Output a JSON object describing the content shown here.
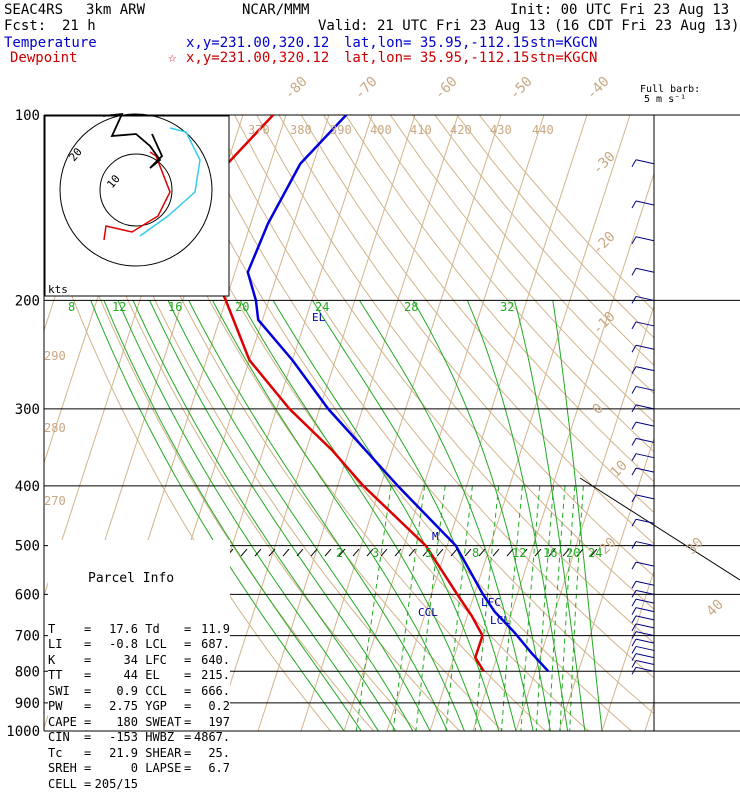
{
  "header": {
    "experiment": "SEAC4RS",
    "model": "3km ARW",
    "center": "NCAR/MMM",
    "init": "Init: 00 UTC Fri 23 Aug 13",
    "fcst_label": "Fcst:",
    "fcst_value": "21 h",
    "valid": "Valid: 21 UTC Fri 23 Aug 13 (16 CDT Fri 23 Aug 13)",
    "temp_label": "Temperature",
    "temp_xy": "x,y=231.00,320.12",
    "temp_latlon": "lat,lon= 35.95,-112.15",
    "temp_stn": "stn=KGCN",
    "dew_label": "Dewpoint",
    "dew_marker": "☆",
    "dew_xy": "x,y=231.00,320.12",
    "dew_latlon": "lat,lon= 35.95,-112.15",
    "dew_stn": "stn=KGCN"
  },
  "barb_key": {
    "title": "Full barb:",
    "value": "5 m s⁻¹"
  },
  "parcel_info": {
    "title": "Parcel Info",
    "rows": [
      {
        "l1": "T",
        "v1": "17.6",
        "l2": "Td",
        "v2": "11.9"
      },
      {
        "l1": "LI",
        "v1": "-0.8",
        "l2": "LCL",
        "v2": "687."
      },
      {
        "l1": "K",
        "v1": "34",
        "l2": "LFC",
        "v2": "640."
      },
      {
        "l1": "TT",
        "v1": "44",
        "l2": "EL",
        "v2": "215."
      },
      {
        "l1": "SWI",
        "v1": "0.9",
        "l2": "CCL",
        "v2": "666."
      },
      {
        "l1": "PW",
        "v1": "2.75",
        "l2": "YGP",
        "v2": "0.2"
      },
      {
        "l1": "CAPE",
        "v1": "180",
        "l2": "SWEAT",
        "v2": "197"
      },
      {
        "l1": "CIN",
        "v1": "-153",
        "l2": "HWBZ",
        "v2": "4867."
      },
      {
        "l1": "Tc",
        "v1": "21.9",
        "l2": "SHEAR",
        "v2": "25."
      },
      {
        "l1": "SREH",
        "v1": "0",
        "l2": "LAPSE",
        "v2": "6.7"
      },
      {
        "l1": "CELL",
        "v1": "205/15",
        "l2": "",
        "v2": ""
      }
    ]
  },
  "hodograph": {
    "units": "kts",
    "ring_labels": [
      "20",
      "10"
    ]
  },
  "chart_data": {
    "type": "line",
    "title": "",
    "xlabel": "",
    "ylabel": "",
    "pressure_ticks": [
      100,
      200,
      300,
      400,
      500,
      600,
      700,
      800,
      900,
      1000
    ],
    "skewt_isotherm_labels": [
      "-80",
      "-70",
      "-60",
      "-50",
      "-40",
      "-30",
      "-20",
      "-10",
      "0",
      "10",
      "20",
      "30",
      "40"
    ],
    "dry_adiabat_labels": [
      "370",
      "380",
      "390",
      "400",
      "410",
      "420",
      "430",
      "440",
      "290",
      "280",
      "270"
    ],
    "mixing_ratio_labels_upper": [
      "8",
      "12",
      "16",
      "20",
      "24",
      "28",
      "32"
    ],
    "mixing_ratio_labels_lower": [
      "2",
      "3",
      "5",
      "8",
      "12",
      "16",
      "20",
      "24"
    ],
    "level_labels": [
      "EL",
      "LFC",
      "CCL",
      "LCL",
      "M"
    ],
    "series": [
      {
        "name": "Temperature",
        "color": "#0000dd",
        "points": [
          {
            "p": 100,
            "t": -66
          },
          {
            "p": 120,
            "t": -73
          },
          {
            "p": 150,
            "t": -76
          },
          {
            "p": 180,
            "t": -77
          },
          {
            "p": 200,
            "t": -73
          },
          {
            "p": 215,
            "t": -71
          },
          {
            "p": 250,
            "t": -60
          },
          {
            "p": 300,
            "t": -48
          },
          {
            "p": 400,
            "t": -26
          },
          {
            "p": 500,
            "t": -8
          },
          {
            "p": 600,
            "t": 2
          },
          {
            "p": 640,
            "t": 6
          },
          {
            "p": 690,
            "t": 12
          },
          {
            "p": 750,
            "t": 18
          },
          {
            "p": 800,
            "t": 23
          }
        ]
      },
      {
        "name": "Dewpoint",
        "color": "#dd0000",
        "points": [
          {
            "p": 100,
            "t": -83
          },
          {
            "p": 130,
            "t": -93
          },
          {
            "p": 150,
            "t": -91
          },
          {
            "p": 165,
            "t": -87
          },
          {
            "p": 180,
            "t": -85
          },
          {
            "p": 200,
            "t": -80
          },
          {
            "p": 250,
            "t": -70
          },
          {
            "p": 300,
            "t": -57
          },
          {
            "p": 350,
            "t": -44
          },
          {
            "p": 400,
            "t": -34
          },
          {
            "p": 500,
            "t": -15
          },
          {
            "p": 600,
            "t": -4
          },
          {
            "p": 650,
            "t": 1
          },
          {
            "p": 700,
            "t": 5
          },
          {
            "p": 760,
            "t": 5
          },
          {
            "p": 800,
            "t": 8
          }
        ]
      }
    ]
  }
}
